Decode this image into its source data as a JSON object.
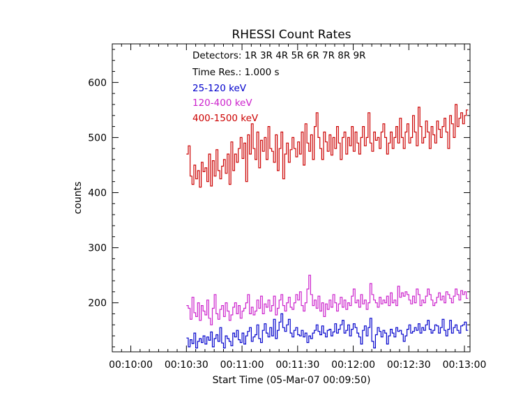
{
  "chart_data": {
    "type": "line",
    "title": "RHESSI Count Rates",
    "xlabel": "Start Time (05-Mar-07 00:09:50)",
    "ylabel": "counts",
    "x_ticks": [
      "00:10:00",
      "00:10:30",
      "00:11:00",
      "00:11:30",
      "00:12:00",
      "00:12:30",
      "00:13:00"
    ],
    "x_tick_values": [
      10,
      40,
      70,
      100,
      130,
      160,
      190
    ],
    "xlim": [
      0,
      193
    ],
    "y_ticks": [
      200,
      300,
      400,
      500,
      600
    ],
    "ylim": [
      111,
      670
    ],
    "grid": false,
    "legend_position": "top-left",
    "annotations": {
      "detectors": "Detectors:  1R 3R 4R 5R 6R 7R 8R 9R",
      "time_res": "Time Res.: 1.000 s"
    },
    "x_sample_start": 40,
    "x_sample_step": 1,
    "series": [
      {
        "name": "25-120 keV",
        "color": "#0000cc",
        "values": [
          136,
          120,
          133,
          126,
          145,
          118,
          130,
          135,
          128,
          140,
          125,
          138,
          132,
          147,
          120,
          135,
          142,
          130,
          155,
          127,
          118,
          140,
          135,
          130,
          122,
          145,
          138,
          150,
          133,
          128,
          145,
          125,
          140,
          148,
          155,
          130,
          138,
          142,
          160,
          135,
          128,
          150,
          162,
          145,
          138,
          155,
          140,
          170,
          135,
          150,
          165,
          180,
          155,
          148,
          160,
          170,
          145,
          138,
          150,
          155,
          142,
          140,
          150,
          138,
          145,
          128,
          140,
          135,
          145,
          150,
          160,
          148,
          142,
          158,
          145,
          138,
          150,
          152,
          140,
          147,
          162,
          145,
          152,
          160,
          168,
          145,
          150,
          160,
          140,
          152,
          162,
          155,
          145,
          138,
          125,
          150,
          158,
          140,
          155,
          172,
          130,
          118,
          142,
          155,
          148,
          138,
          150,
          145,
          125,
          140,
          152,
          145,
          138,
          155,
          148,
          150,
          143,
          130,
          140,
          152,
          160,
          145,
          148,
          155,
          150,
          162,
          145,
          155,
          150,
          160,
          168,
          152,
          145,
          150,
          160,
          158,
          145,
          155,
          170,
          150,
          140,
          152,
          168,
          145,
          155,
          160,
          150,
          145,
          158,
          160,
          165,
          150
        ]
      },
      {
        "name": "120-400 keV",
        "color": "#cc22cc",
        "values": [
          195,
          190,
          170,
          210,
          182,
          175,
          200,
          168,
          195,
          185,
          178,
          205,
          172,
          160,
          190,
          215,
          180,
          170,
          188,
          195,
          175,
          200,
          185,
          168,
          178,
          192,
          200,
          180,
          195,
          172,
          185,
          190,
          200,
          215,
          180,
          192,
          178,
          185,
          205,
          190,
          212,
          180,
          198,
          192,
          205,
          185,
          195,
          212,
          178,
          190,
          205,
          215,
          195,
          185,
          200,
          210,
          192,
          188,
          200,
          215,
          205,
          220,
          195,
          185,
          200,
          225,
          250,
          215,
          195,
          205,
          190,
          212,
          185,
          200,
          175,
          198,
          188,
          205,
          192,
          215,
          200,
          185,
          198,
          210,
          192,
          205,
          188,
          200,
          195,
          212,
          225,
          200,
          205,
          192,
          215,
          198,
          205,
          188,
          200,
          235,
          215,
          205,
          200,
          192,
          210,
          198,
          205,
          200,
          212,
          195,
          218,
          200,
          205,
          195,
          230,
          210,
          218,
          212,
          220,
          215,
          205,
          198,
          212,
          200,
          225,
          215,
          195,
          205,
          200,
          212,
          225,
          215,
          205,
          195,
          200,
          210,
          218,
          205,
          212,
          200,
          220,
          215,
          208,
          200,
          212,
          225,
          215,
          205,
          222,
          215,
          220,
          208
        ]
      },
      {
        "name": "400-1500 keV",
        "color": "#cc0000",
        "values": [
          470,
          485,
          430,
          415,
          450,
          425,
          440,
          410,
          455,
          438,
          445,
          420,
          470,
          412,
          458,
          430,
          478,
          440,
          425,
          448,
          460,
          435,
          470,
          415,
          492,
          440,
          470,
          455,
          480,
          500,
          462,
          490,
          420,
          505,
          470,
          525,
          480,
          460,
          510,
          445,
          495,
          475,
          500,
          460,
          520,
          480,
          475,
          455,
          505,
          440,
          480,
          510,
          425,
          470,
          490,
          455,
          478,
          500,
          480,
          465,
          492,
          470,
          510,
          450,
          525,
          490,
          475,
          505,
          460,
          520,
          545,
          500,
          480,
          460,
          510,
          492,
          475,
          505,
          468,
          500,
          480,
          520,
          490,
          460,
          500,
          510,
          470,
          500,
          485,
          520,
          475,
          510,
          490,
          470,
          500,
          520,
          485,
          500,
          545,
          490,
          475,
          510,
          495,
          500,
          480,
          510,
          525,
          500,
          470,
          490,
          510,
          480,
          500,
          520,
          490,
          535,
          500,
          480,
          510,
          525,
          490,
          500,
          540,
          510,
          485,
          555,
          520,
          490,
          500,
          530,
          510,
          480,
          520,
          505,
          490,
          530,
          515,
          500,
          520,
          535,
          510,
          480,
          540,
          525,
          500,
          560,
          520,
          535,
          545,
          525,
          540,
          550
        ]
      }
    ]
  }
}
